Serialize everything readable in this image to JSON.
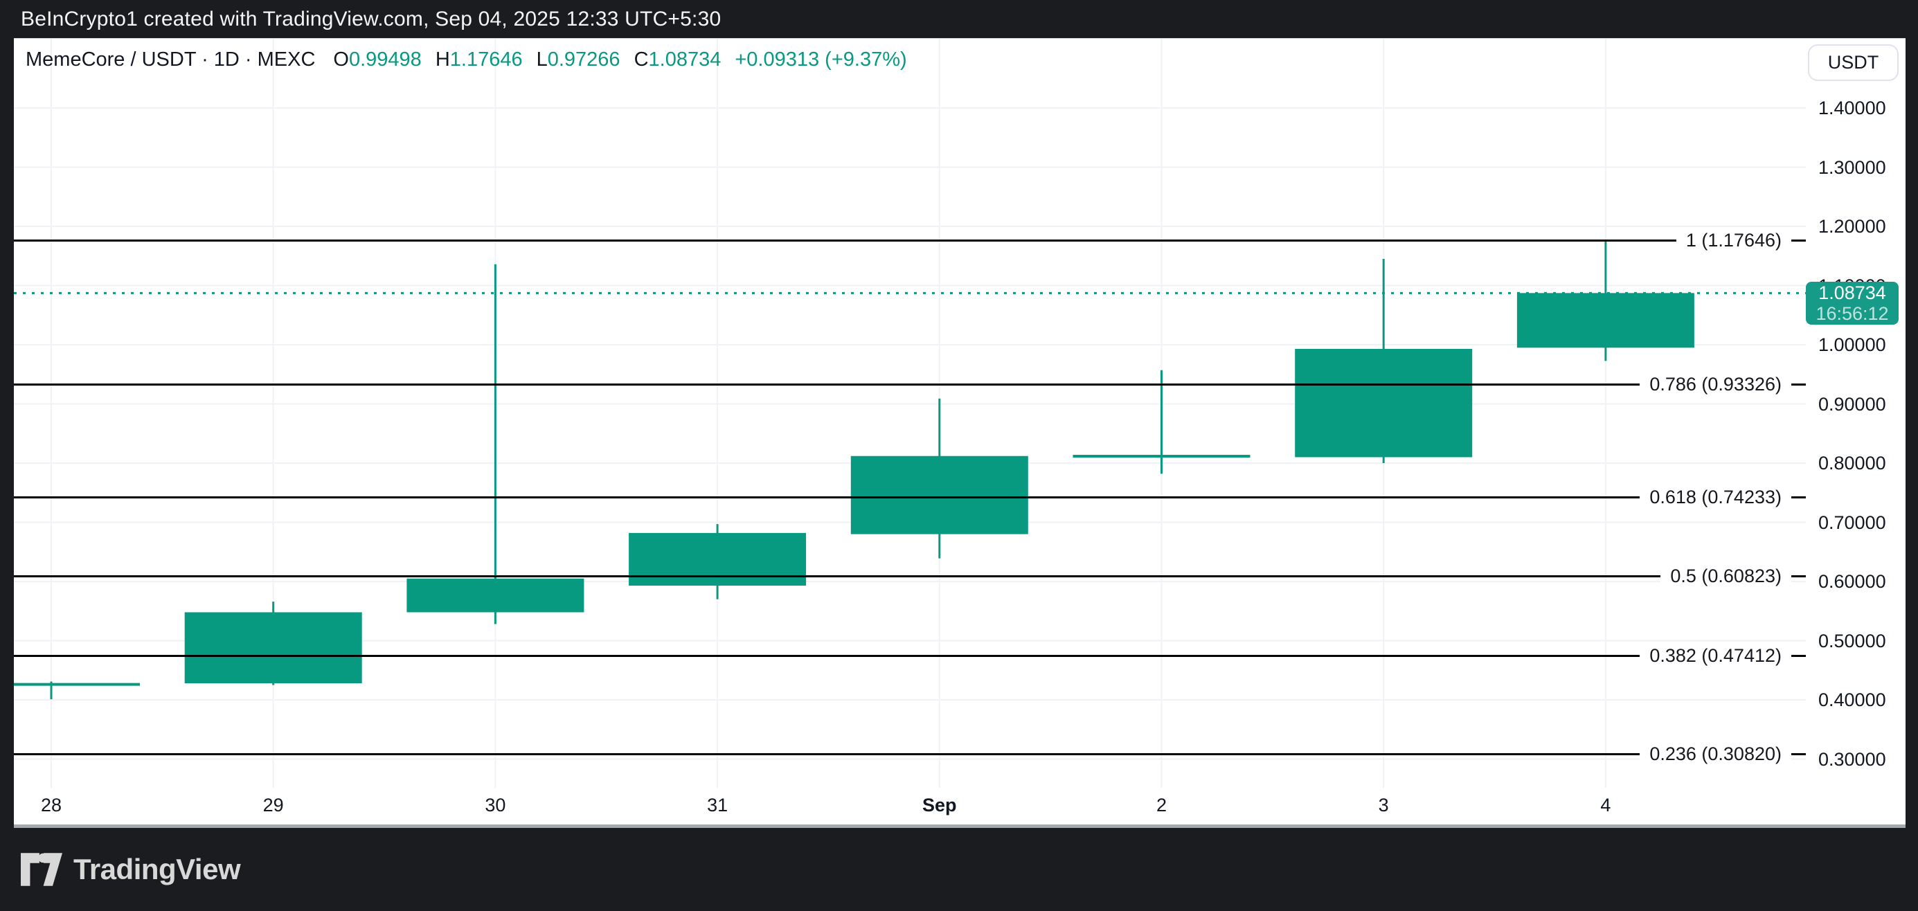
{
  "top_bar": {
    "attribution": "BeInCrypto1 created with TradingView.com, Sep 04, 2025 12:33 UTC+5:30"
  },
  "header": {
    "symbol": "MemeCore / USDT · 1D · MEXC",
    "ohlc": [
      {
        "label": "O",
        "value": "0.99498"
      },
      {
        "label": "H",
        "value": "1.17646"
      },
      {
        "label": "L",
        "value": "0.97266"
      },
      {
        "label": "C",
        "value": "1.08734"
      }
    ],
    "change": "+0.09313 (+9.37%)",
    "currency_button": "USDT"
  },
  "chart_data": {
    "type": "candlestick",
    "title": "MemeCore / USDT · 1D · MEXC",
    "x_categories": [
      "28",
      "29",
      "30",
      "31",
      "Sep",
      "2",
      "3",
      "4"
    ],
    "bold_category": "Sep",
    "candles": [
      {
        "x": "28",
        "o": 0.4285,
        "h": 0.431,
        "l": 0.401,
        "c": 0.428
      },
      {
        "x": "29",
        "o": 0.428,
        "h": 0.566,
        "l": 0.425,
        "c": 0.548
      },
      {
        "x": "30",
        "o": 0.548,
        "h": 1.136,
        "l": 0.528,
        "c": 0.605
      },
      {
        "x": "31",
        "o": 0.593,
        "h": 0.697,
        "l": 0.57,
        "c": 0.682
      },
      {
        "x": "Sep",
        "o": 0.68,
        "h": 0.909,
        "l": 0.639,
        "c": 0.812
      },
      {
        "x": "2",
        "o": 0.8135,
        "h": 0.957,
        "l": 0.782,
        "c": 0.814
      },
      {
        "x": "3",
        "o": 0.81,
        "h": 1.145,
        "l": 0.8,
        "c": 0.993
      },
      {
        "x": "4",
        "o": 0.99498,
        "h": 1.17646,
        "l": 0.97266,
        "c": 1.08734
      }
    ],
    "y_axis_ticks": [
      "1.40000",
      "1.30000",
      "1.20000",
      "1.10000",
      "1.00000",
      "0.90000",
      "0.80000",
      "0.70000",
      "0.60000",
      "0.50000",
      "0.40000",
      "0.30000"
    ],
    "ylim": [
      0.25,
      1.52
    ],
    "grid": true,
    "fib_levels": [
      {
        "label": "1 (1.17646)",
        "price": 1.17646
      },
      {
        "label": "0.786 (0.93326)",
        "price": 0.93326
      },
      {
        "label": "0.618 (0.74233)",
        "price": 0.74233
      },
      {
        "label": "0.5 (0.60823)",
        "price": 0.60823
      },
      {
        "label": "0.382 (0.47412)",
        "price": 0.47412
      },
      {
        "label": "0.236 (0.30820)",
        "price": 0.3082
      }
    ],
    "last_price": {
      "value": "1.08734",
      "countdown": "16:56:12",
      "price": 1.08734
    }
  },
  "footer": {
    "brand": "TradingView"
  },
  "colors": {
    "candle": "#089981",
    "badge": "#179b89",
    "grid": "#f0f2f5",
    "fib_line": "#000000",
    "frame_dark": "#1b1c20",
    "text_dark": "#131722"
  }
}
